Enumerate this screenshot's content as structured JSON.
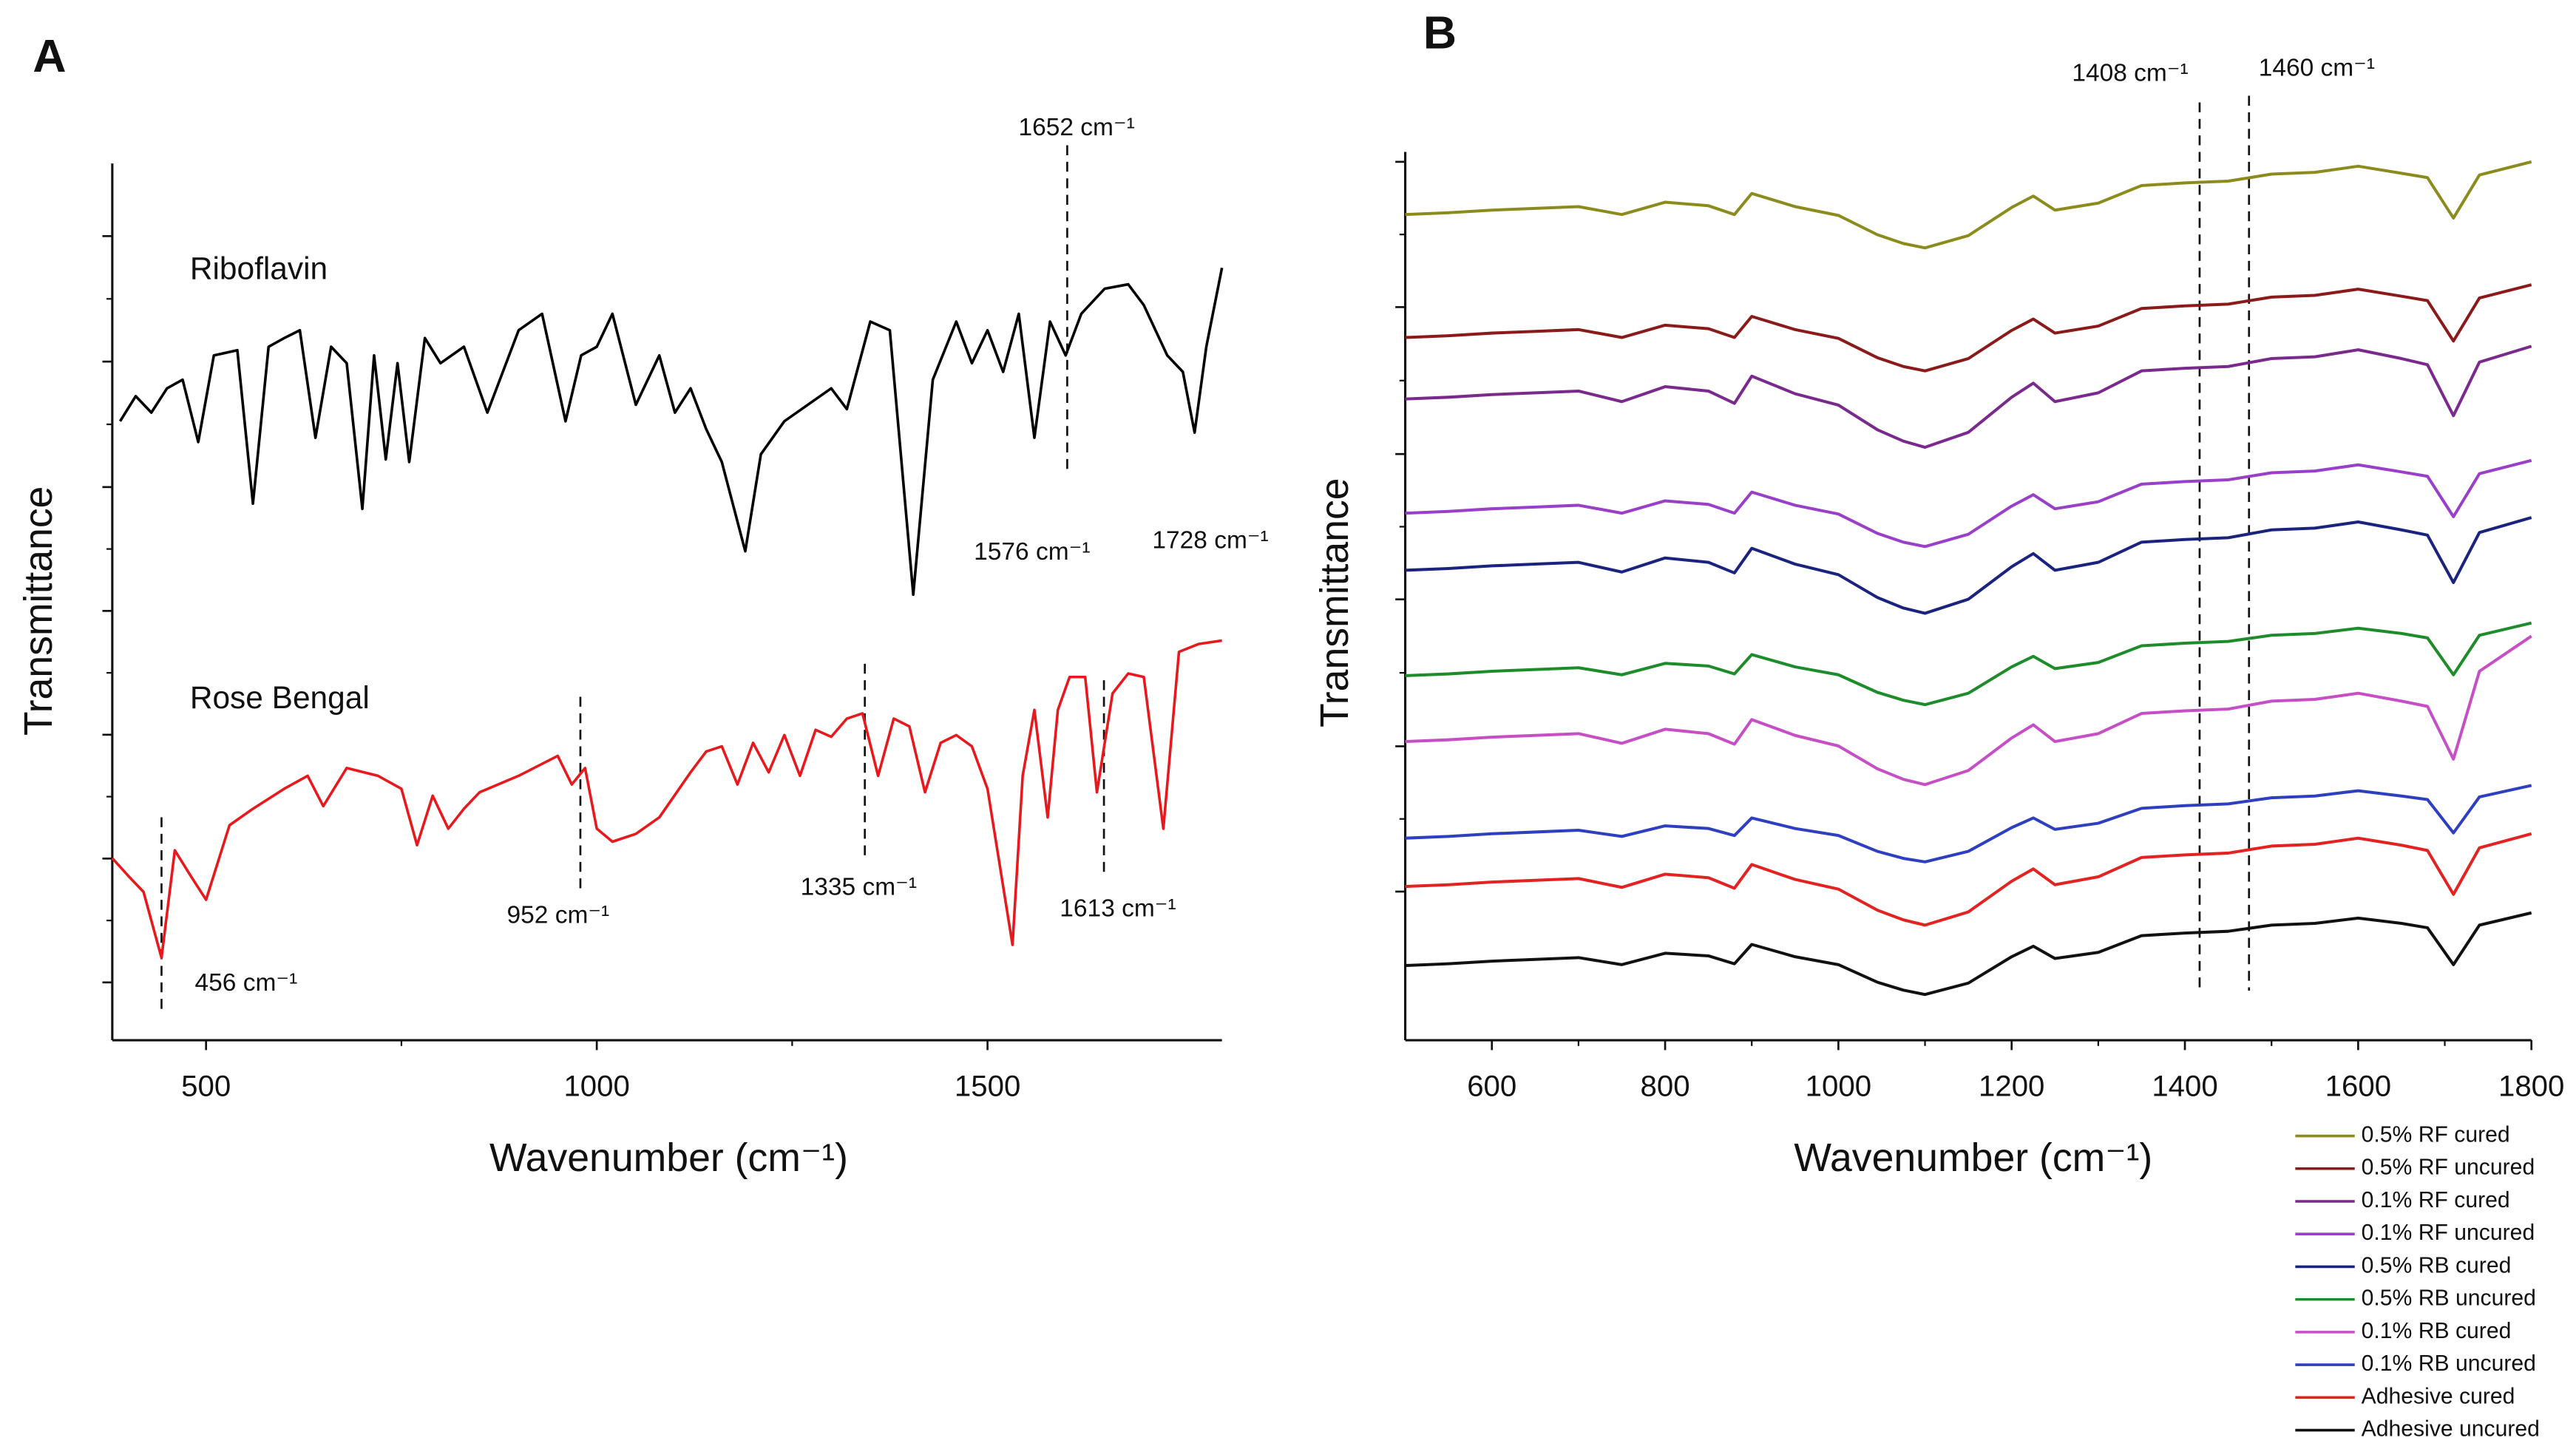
{
  "chart_data": [
    {
      "type": "line",
      "panel_label": "A",
      "xlabel": "Wavenumber (cm⁻¹)",
      "ylabel": "Transmittance",
      "xlim": [
        380,
        1800
      ],
      "xticks": [
        500,
        1000,
        1500
      ],
      "ylim": [
        0,
        100
      ],
      "legend": false,
      "series": [
        {
          "name": "Riboflavin",
          "color": "#000000",
          "x": [
            390,
            410,
            430,
            450,
            470,
            490,
            510,
            540,
            560,
            580,
            600,
            620,
            640,
            660,
            680,
            700,
            715,
            730,
            745,
            760,
            780,
            800,
            830,
            860,
            900,
            930,
            960,
            980,
            1000,
            1020,
            1050,
            1080,
            1100,
            1120,
            1140,
            1160,
            1190,
            1210,
            1240,
            1270,
            1300,
            1320,
            1350,
            1375,
            1405,
            1430,
            1460,
            1480,
            1500,
            1520,
            1540,
            1560,
            1580,
            1600,
            1620,
            1650,
            1680,
            1700,
            1730,
            1750,
            1765,
            1780,
            1800
          ],
          "values": [
            71.4,
            74.3,
            72.4,
            75.2,
            76.2,
            69,
            79,
            79.6,
            61.9,
            80,
            81,
            81.9,
            69.5,
            80,
            78.1,
            61.3,
            79,
            67,
            78.1,
            66.7,
            81,
            78.1,
            80,
            72.4,
            81.9,
            83.8,
            71.4,
            79,
            80,
            83.8,
            73.3,
            79,
            72.4,
            75.2,
            70.5,
            66.7,
            56.4,
            67.6,
            71.4,
            73.3,
            75.2,
            72.8,
            82.9,
            81.9,
            51.4,
            76.2,
            82.9,
            78.1,
            81.9,
            77.1,
            83.8,
            69.5,
            82.9,
            79,
            83.8,
            86.7,
            87.2,
            84.8,
            79,
            77.1,
            70.1,
            80,
            89.1
          ]
        },
        {
          "name": "Rose Bengal",
          "color": "#e8191c",
          "x": [
            380,
            400,
            420,
            443,
            460,
            480,
            500,
            530,
            560,
            600,
            630,
            650,
            680,
            720,
            750,
            770,
            790,
            810,
            830,
            850,
            900,
            950,
            968,
            985,
            1000,
            1020,
            1050,
            1080,
            1120,
            1140,
            1160,
            1180,
            1200,
            1220,
            1240,
            1260,
            1280,
            1300,
            1320,
            1340,
            1360,
            1380,
            1400,
            1420,
            1440,
            1460,
            1480,
            1500,
            1532,
            1545,
            1560,
            1577,
            1590,
            1605,
            1625,
            1640,
            1660,
            1680,
            1700,
            1725,
            1745,
            1770,
            1800
          ],
          "values": [
            21,
            19,
            17.1,
            9.5,
            21.9,
            19,
            16.2,
            24.8,
            26.7,
            29,
            30.5,
            27,
            31.4,
            30.5,
            29,
            22.5,
            28.2,
            24.4,
            26.7,
            28.6,
            30.5,
            32.8,
            29.5,
            31.4,
            24.4,
            22.9,
            23.8,
            25.7,
            30.9,
            33.3,
            33.9,
            29.5,
            34.3,
            30.9,
            35.2,
            30.5,
            35.8,
            35,
            37.1,
            37.7,
            30.5,
            37.1,
            36.2,
            28.6,
            34.3,
            35.2,
            33.9,
            29,
            11,
            30.5,
            38.1,
            25.7,
            38.1,
            41.9,
            41.9,
            28.6,
            40,
            42.3,
            41.9,
            24.4,
            44.8,
            45.7,
            46.1
          ]
        }
      ],
      "markers": [
        {
          "x": 1602,
          "label": "1652 cm⁻¹"
        },
        {
          "x": 443,
          "label": "456 cm⁻¹"
        },
        {
          "x": 979,
          "label": "952 cm⁻¹"
        },
        {
          "x": 1343,
          "label": "1335 cm⁻¹"
        },
        {
          "x": 1649,
          "label": "1613 cm⁻¹"
        }
      ],
      "notes": [
        "1576 cm⁻¹",
        "1728 cm⁻¹"
      ]
    },
    {
      "type": "line",
      "panel_label": "B",
      "xlabel": "Wavenumber (cm⁻¹)",
      "ylabel": "Transmittance",
      "xlim": [
        500,
        1800
      ],
      "xticks": [
        600,
        800,
        1000,
        1200,
        1400,
        1600,
        1800
      ],
      "ylim": [
        0,
        100
      ],
      "legend": "outside-bottom-right",
      "x": [
        500,
        550,
        600,
        650,
        700,
        750,
        800,
        850,
        880,
        900,
        950,
        1000,
        1045,
        1075,
        1100,
        1150,
        1200,
        1225,
        1250,
        1300,
        1350,
        1400,
        1450,
        1500,
        1550,
        1600,
        1650,
        1680,
        1710,
        1740,
        1800
      ],
      "series": [
        {
          "name": "0.5% RF cured",
          "color": "#8c8c1e",
          "values": [
            94,
            94.2,
            94.5,
            94.7,
            94.9,
            94,
            95.4,
            95,
            94,
            96.4,
            94.9,
            93.9,
            91.7,
            90.7,
            90.2,
            91.6,
            94.8,
            96.1,
            94.5,
            95.3,
            97.3,
            97.6,
            97.8,
            98.6,
            98.8,
            99.5,
            98.7,
            98.2,
            93.6,
            98.5,
            100
          ]
        },
        {
          "name": "0.5% RF uncured",
          "color": "#8b1a1a",
          "values": [
            80,
            80.2,
            80.5,
            80.7,
            80.9,
            80,
            81.4,
            81,
            80,
            82.4,
            80.9,
            79.9,
            77.7,
            76.7,
            76.2,
            77.6,
            80.8,
            82.1,
            80.5,
            81.3,
            83.3,
            83.6,
            83.8,
            84.6,
            84.8,
            85.5,
            84.7,
            84.2,
            79.6,
            84.5,
            86
          ]
        },
        {
          "name": "0.1% RF cured",
          "color": "#7a2a8c",
          "values": [
            73,
            73.2,
            73.5,
            73.7,
            73.9,
            72.7,
            74.4,
            73.9,
            72.5,
            75.6,
            73.6,
            72.3,
            69.5,
            68.2,
            67.5,
            69.2,
            73.2,
            74.8,
            72.7,
            73.7,
            76.2,
            76.5,
            76.7,
            77.6,
            77.8,
            78.6,
            77.6,
            76.9,
            71.1,
            77.2,
            79
          ]
        },
        {
          "name": "0.1% RF uncured",
          "color": "#9a3fc8",
          "values": [
            60,
            60.2,
            60.5,
            60.7,
            60.9,
            60,
            61.4,
            61,
            60,
            62.4,
            60.9,
            59.9,
            57.7,
            56.7,
            56.2,
            57.6,
            60.8,
            62.1,
            60.5,
            61.3,
            63.3,
            63.6,
            63.8,
            64.6,
            64.8,
            65.5,
            64.7,
            64.2,
            59.6,
            64.5,
            66
          ]
        },
        {
          "name": "0.5% RB cured",
          "color": "#1a237e",
          "values": [
            53.5,
            53.7,
            54,
            54.2,
            54.4,
            53.3,
            54.9,
            54.4,
            53.2,
            56,
            54.2,
            53,
            50.4,
            49.2,
            48.6,
            50.2,
            53.9,
            55.4,
            53.5,
            54.4,
            56.7,
            57,
            57.2,
            58.1,
            58.3,
            59,
            58.1,
            57.5,
            52.1,
            57.8,
            59.5
          ]
        },
        {
          "name": "0.5% RB uncured",
          "color": "#1e8c2a",
          "values": [
            41.5,
            41.7,
            42,
            42.2,
            42.4,
            41.6,
            42.9,
            42.6,
            41.7,
            43.9,
            42.5,
            41.6,
            39.6,
            38.7,
            38.2,
            39.5,
            42.5,
            43.7,
            42.3,
            43,
            44.9,
            45.2,
            45.4,
            46.1,
            46.3,
            46.9,
            46.3,
            45.8,
            41.6,
            46.1,
            47.5
          ]
        },
        {
          "name": "0.1% RB cured",
          "color": "#c64fc6",
          "values": [
            34,
            34.2,
            34.5,
            34.7,
            34.9,
            33.8,
            35.4,
            34.9,
            33.7,
            36.5,
            34.7,
            33.5,
            30.9,
            29.7,
            29.1,
            30.7,
            34.4,
            35.9,
            34,
            34.9,
            37.2,
            37.5,
            37.7,
            38.6,
            38.8,
            39.5,
            38.6,
            38,
            32,
            42,
            46
          ]
        },
        {
          "name": "0.1% RB uncured",
          "color": "#2e3fbf",
          "values": [
            23,
            23.2,
            23.5,
            23.7,
            23.9,
            23.2,
            24.4,
            24.1,
            23.3,
            25.3,
            24.1,
            23.3,
            21.5,
            20.7,
            20.3,
            21.5,
            24.2,
            25.3,
            24,
            24.7,
            26.4,
            26.7,
            26.9,
            27.6,
            27.8,
            28.4,
            27.8,
            27.4,
            23.6,
            27.7,
            29
          ]
        },
        {
          "name": "Adhesive cured",
          "color": "#e32222",
          "values": [
            17.5,
            17.7,
            18,
            18.2,
            18.4,
            17.4,
            18.9,
            18.5,
            17.3,
            20,
            18.3,
            17.2,
            14.8,
            13.7,
            13.1,
            14.6,
            18.1,
            19.5,
            17.7,
            18.6,
            20.8,
            21.1,
            21.3,
            22.1,
            22.3,
            23,
            22.2,
            21.6,
            16.6,
            21.9,
            23.5
          ]
        },
        {
          "name": "Adhesive uncured",
          "color": "#111111",
          "values": [
            8.5,
            8.7,
            9,
            9.2,
            9.4,
            8.6,
            9.9,
            9.6,
            8.7,
            10.9,
            9.5,
            8.6,
            6.6,
            5.7,
            5.2,
            6.5,
            9.5,
            10.7,
            9.3,
            10,
            11.9,
            12.2,
            12.4,
            13.1,
            13.3,
            13.9,
            13.3,
            12.8,
            8.6,
            13.1,
            14.5
          ]
        }
      ],
      "markers": [
        {
          "x": 1417,
          "label": "1408 cm⁻¹"
        },
        {
          "x": 1474,
          "label": "1460 cm⁻¹"
        }
      ]
    }
  ]
}
